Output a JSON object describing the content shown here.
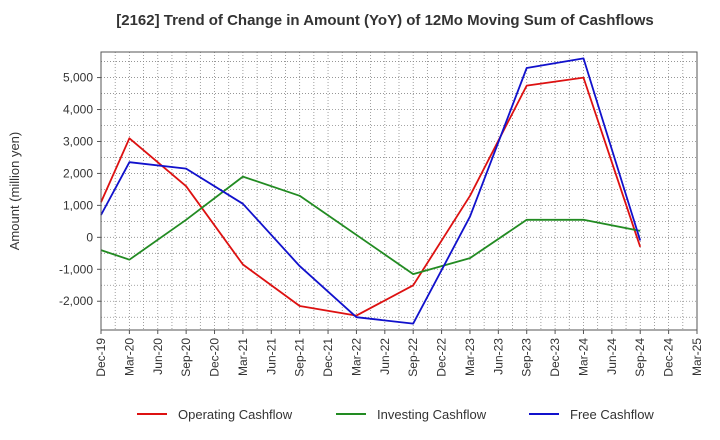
{
  "chart_data": {
    "type": "line",
    "title": "[2162]  Trend of Change in Amount (YoY) of 12Mo Moving Sum of Cashflows",
    "xlabel": "",
    "ylabel": "Amount (million yen)",
    "categories": [
      "Dec-19",
      "Mar-20",
      "Jun-20",
      "Sep-20",
      "Dec-20",
      "Mar-21",
      "Jun-21",
      "Sep-21",
      "Dec-21",
      "Mar-22",
      "Jun-22",
      "Sep-22",
      "Dec-22",
      "Mar-23",
      "Jun-23",
      "Sep-23",
      "Dec-23",
      "Mar-24",
      "Jun-24",
      "Sep-24",
      "Dec-24",
      "Mar-25"
    ],
    "ylim": [
      -2900,
      5800
    ],
    "yticks": [
      -2000,
      -1000,
      0,
      1000,
      2000,
      3000,
      4000,
      5000
    ],
    "ytick_labels": [
      "-2,000",
      "-1,000",
      "0",
      "1,000",
      "2,000",
      "3,000",
      "4,000",
      "5,000"
    ],
    "grid": true,
    "legend_position": "bottom",
    "series": [
      {
        "name": "Operating Cashflow",
        "color": "#dd1111",
        "values": [
          1100,
          3100,
          null,
          1600,
          null,
          -850,
          null,
          -2150,
          null,
          -2450,
          null,
          -1500,
          null,
          1300,
          null,
          4750,
          null,
          5000,
          null,
          -300,
          null,
          null
        ]
      },
      {
        "name": "Investing Cashflow",
        "color": "#228b22",
        "values": [
          -400,
          -700,
          null,
          550,
          null,
          1900,
          null,
          1300,
          null,
          null,
          null,
          -1150,
          null,
          -650,
          null,
          550,
          null,
          550,
          null,
          200,
          null,
          null
        ]
      },
      {
        "name": "Free Cashflow",
        "color": "#1111cc",
        "values": [
          700,
          2350,
          null,
          2150,
          null,
          1050,
          null,
          -900,
          null,
          -2500,
          null,
          -2700,
          null,
          650,
          null,
          5300,
          null,
          5600,
          null,
          -100,
          null,
          null
        ]
      }
    ]
  }
}
